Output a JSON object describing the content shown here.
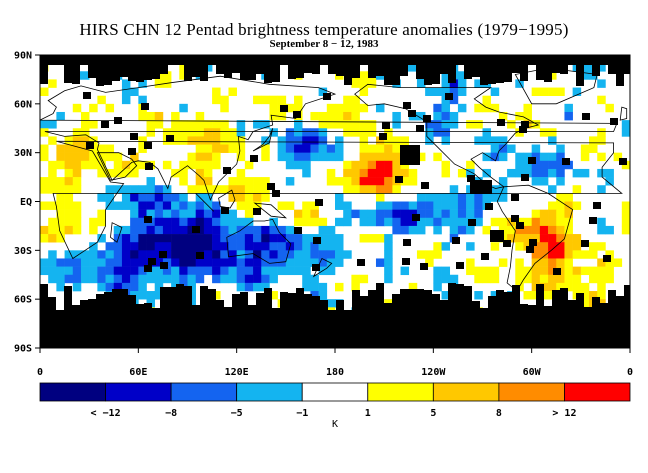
{
  "title": "HIRS CHN 12 Pentad brightness temperature anomalies (1979−1995)",
  "subtitle": "September 8 − 12, 1983",
  "lat_labels": [
    "90N",
    "60N",
    "30N",
    "EQ",
    "30S",
    "60S",
    "90S"
  ],
  "lon_labels": [
    "0",
    "60E",
    "120E",
    "180",
    "120W",
    "60W",
    "0"
  ],
  "colorbar": {
    "colors": [
      "#000080",
      "#0000c8",
      "#1464f0",
      "#14b4f0",
      "#ffffff",
      "#ffff00",
      "#ffc800",
      "#ff8c00",
      "#ff0000"
    ],
    "labels": [
      "< −12",
      "−8",
      "−5",
      "−1",
      "1",
      "5",
      "8",
      "> 12"
    ],
    "unit": "K"
  },
  "palette": {
    "land_outline": "#000000",
    "missing": "#000000"
  }
}
